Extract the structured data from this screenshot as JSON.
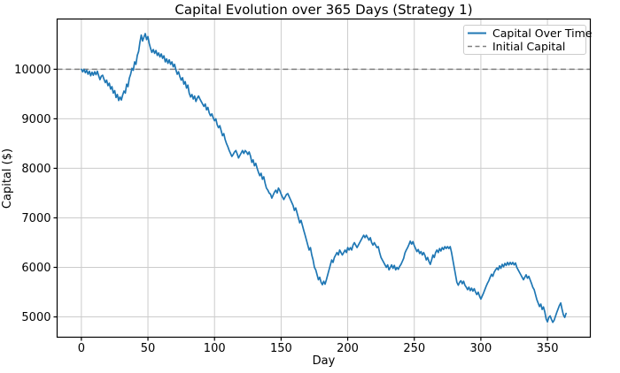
{
  "chart_data": {
    "type": "line",
    "title": "Capital Evolution over 365 Days (Strategy 1)",
    "xlabel": "Day",
    "ylabel": "Capital ($)",
    "x_ticks": [
      0,
      50,
      100,
      150,
      200,
      250,
      300,
      350
    ],
    "y_ticks": [
      5000,
      6000,
      7000,
      8000,
      9000,
      10000
    ],
    "xlim": [
      -18.2,
      382.2
    ],
    "ylim": [
      4590,
      11015
    ],
    "grid": true,
    "legend_position": "upper right",
    "initial_capital": 10000,
    "colors": {
      "capital_line": "#1f77b4",
      "initial_capital_line": "#808080",
      "grid": "#cccccc",
      "spine": "#000000",
      "background": "#ffffff"
    },
    "series": [
      {
        "name": "Capital Over Time",
        "style": "solid",
        "x_start": 0,
        "x_step": 1,
        "y": [
          10000,
          9950,
          10000,
          9930,
          9980,
          9900,
          9960,
          9870,
          9940,
          9880,
          9950,
          9890,
          9960,
          9870,
          9790,
          9860,
          9880,
          9800,
          9730,
          9780,
          9670,
          9720,
          9600,
          9650,
          9520,
          9570,
          9430,
          9490,
          9370,
          9440,
          9380,
          9480,
          9560,
          9520,
          9700,
          9650,
          9820,
          9900,
          10020,
          9980,
          10150,
          10100,
          10280,
          10360,
          10550,
          10690,
          10570,
          10650,
          10720,
          10600,
          10660,
          10520,
          10420,
          10340,
          10400,
          10320,
          10380,
          10280,
          10330,
          10250,
          10310,
          10220,
          10270,
          10150,
          10210,
          10120,
          10190,
          10100,
          10150,
          10050,
          10100,
          9990,
          9900,
          9950,
          9850,
          9780,
          9830,
          9700,
          9750,
          9620,
          9680,
          9520,
          9440,
          9490,
          9400,
          9460,
          9350,
          9420,
          9460,
          9400,
          9350,
          9300,
          9250,
          9300,
          9180,
          9230,
          9120,
          9060,
          9100,
          9020,
          8960,
          9000,
          8880,
          8820,
          8860,
          8760,
          8660,
          8700,
          8580,
          8500,
          8440,
          8360,
          8300,
          8240,
          8280,
          8330,
          8360,
          8290,
          8210,
          8260,
          8310,
          8360,
          8300,
          8360,
          8330,
          8280,
          8330,
          8250,
          8120,
          8170,
          8050,
          8100,
          8000,
          7920,
          7850,
          7900,
          7780,
          7830,
          7700,
          7600,
          7560,
          7500,
          7480,
          7400,
          7460,
          7520,
          7560,
          7500,
          7600,
          7550,
          7480,
          7420,
          7370,
          7420,
          7470,
          7490,
          7430,
          7370,
          7310,
          7250,
          7150,
          7200,
          7100,
          7000,
          6900,
          6950,
          6850,
          6750,
          6650,
          6550,
          6450,
          6350,
          6400,
          6250,
          6150,
          6000,
          5950,
          5850,
          5750,
          5800,
          5700,
          5650,
          5720,
          5660,
          5750,
          5850,
          5950,
          6050,
          6150,
          6100,
          6200,
          6250,
          6300,
          6250,
          6350,
          6300,
          6250,
          6300,
          6350,
          6300,
          6400,
          6350,
          6400,
          6350,
          6450,
          6500,
          6450,
          6400,
          6450,
          6500,
          6550,
          6600,
          6650,
          6600,
          6650,
          6600,
          6550,
          6600,
          6500,
          6450,
          6500,
          6450,
          6400,
          6420,
          6300,
          6200,
          6150,
          6100,
          6050,
          6000,
          6050,
          5950,
          6000,
          6050,
          5980,
          6040,
          5950,
          6000,
          5960,
          6020,
          6060,
          6120,
          6180,
          6290,
          6350,
          6400,
          6460,
          6530,
          6470,
          6520,
          6440,
          6380,
          6320,
          6360,
          6280,
          6320,
          6250,
          6300,
          6240,
          6150,
          6200,
          6120,
          6060,
          6150,
          6250,
          6200,
          6300,
          6350,
          6300,
          6380,
          6330,
          6400,
          6360,
          6420,
          6380,
          6420,
          6380,
          6420,
          6300,
          6150,
          6000,
          5850,
          5700,
          5640,
          5700,
          5730,
          5670,
          5720,
          5640,
          5600,
          5550,
          5600,
          5530,
          5580,
          5520,
          5570,
          5500,
          5450,
          5500,
          5420,
          5360,
          5420,
          5480,
          5550,
          5620,
          5680,
          5730,
          5800,
          5860,
          5820,
          5900,
          5950,
          5990,
          5950,
          6030,
          5980,
          6060,
          6010,
          6080,
          6040,
          6100,
          6050,
          6100,
          6060,
          6100,
          6050,
          6090,
          6000,
          5950,
          5900,
          5850,
          5800,
          5750,
          5800,
          5850,
          5780,
          5820,
          5750,
          5680,
          5600,
          5550,
          5450,
          5350,
          5280,
          5210,
          5260,
          5150,
          5200,
          5100,
          4960,
          4900,
          4990,
          5020,
          4950,
          4890,
          4930,
          5010,
          5090,
          5160,
          5230,
          5280,
          5150,
          5040,
          4990,
          5070
        ]
      },
      {
        "name": "Initial Capital",
        "style": "dashed",
        "value": 10000
      }
    ]
  }
}
